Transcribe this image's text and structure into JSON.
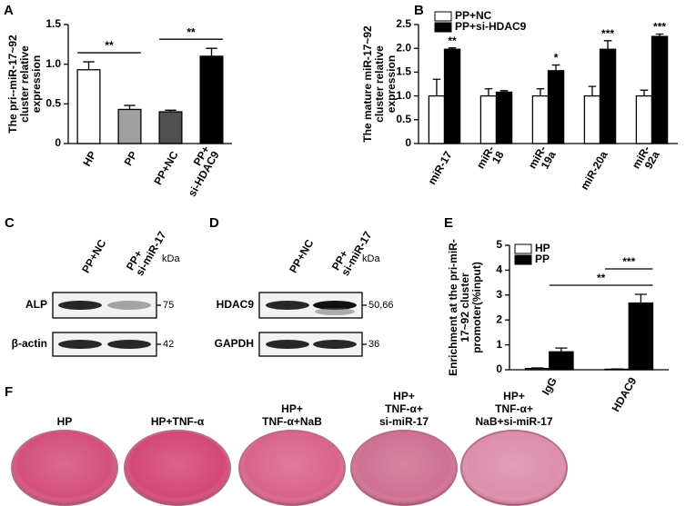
{
  "chart_data": [
    {
      "type": "bar",
      "panel": "A",
      "ylabel": [
        "The pri--miR-17~92",
        "cluster relative",
        "expression"
      ],
      "categories": [
        [
          "HP"
        ],
        [
          "PP"
        ],
        [
          "PP+NC"
        ],
        [
          "PP+",
          "si-HDAC9"
        ]
      ],
      "values": [
        0.93,
        0.43,
        0.4,
        1.1
      ],
      "errors": [
        0.1,
        0.05,
        0.02,
        0.1
      ],
      "colors": [
        "#ffffff",
        "#a0a0a0",
        "#505050",
        "#000000"
      ],
      "ylim": [
        0,
        1.5
      ],
      "yticks": [
        0,
        0.5,
        {
          "value": 1,
          "label": "1.0"
        },
        1.5
      ],
      "brackets": [
        {
          "from": 0,
          "to": 1,
          "label": "**"
        },
        {
          "from": 2,
          "to": 3,
          "label": "**"
        }
      ]
    },
    {
      "type": "grouped_bar",
      "panel": "B",
      "ylabel": [
        "The mature miR-17~92",
        "cluster relative",
        "expression"
      ],
      "categories": [
        [
          "miR-17"
        ],
        [
          "miR-",
          "18"
        ],
        [
          "miR-",
          "19a"
        ],
        [
          "miR-20a"
        ],
        [
          "miR-",
          "92a"
        ]
      ],
      "series": [
        {
          "name": "PP+NC",
          "color": "#ffffff",
          "values": [
            1,
            1,
            1,
            1,
            1
          ],
          "errors": [
            0.35,
            0.15,
            0.15,
            0.2,
            0.12
          ]
        },
        {
          "name": "PP+si-HDAC9",
          "color": "#000000",
          "values": [
            1.98,
            1.08,
            1.53,
            1.98,
            2.25
          ],
          "errors": [
            0.03,
            0.03,
            0.12,
            0.18,
            0.05
          ]
        }
      ],
      "annotations": [
        "**",
        null,
        "*",
        "***",
        "***"
      ],
      "ylim": [
        0,
        2.5
      ],
      "yticks": [
        0,
        0.5,
        {
          "value": 1,
          "label": "1.0"
        },
        1.5,
        {
          "value": 2,
          "label": "2.0"
        },
        2.5
      ],
      "brackets": []
    },
    {
      "type": "grouped_bar",
      "panel": "E",
      "ylabel": [
        "Enrichment at the pri-miR-",
        "17~92 cluster",
        "promoter(%input)"
      ],
      "categories": [
        [
          "IgG"
        ],
        [
          "HDAC9"
        ]
      ],
      "series": [
        {
          "name": "HP",
          "color": "#ffffff",
          "values": [
            0.05,
            0.02
          ],
          "errors": [
            0.02,
            0.01
          ]
        },
        {
          "name": "PP",
          "color": "#000000",
          "values": [
            0.72,
            2.68
          ],
          "errors": [
            0.15,
            0.35
          ]
        }
      ],
      "annotations": [
        null,
        null
      ],
      "ylim": [
        0,
        5
      ],
      "yticks": [
        0,
        1,
        2,
        3,
        4,
        5
      ],
      "brackets": [
        {
          "from": [
            1,
            0
          ],
          "to": [
            1,
            1
          ],
          "label": "**"
        },
        {
          "from": [
            0,
            1
          ],
          "to": [
            1,
            1
          ],
          "label": "***"
        }
      ]
    }
  ],
  "blots": [
    {
      "panel": "C",
      "lanes": [
        [
          "PP+NC"
        ],
        [
          "PP+",
          "si-miR-17"
        ]
      ],
      "unit": "kDa",
      "rows": [
        {
          "label": "ALP",
          "kda": "75"
        },
        {
          "label": "β-actin",
          "kda": "42"
        }
      ]
    },
    {
      "panel": "D",
      "lanes": [
        [
          "PP+NC"
        ],
        [
          "PP+",
          "si-miR-17"
        ]
      ],
      "unit": "kDa",
      "rows": [
        {
          "label": "HDAC9",
          "kda": "50,66"
        },
        {
          "label": "GAPDH",
          "kda": "36"
        }
      ]
    }
  ],
  "wells": {
    "panel": "F",
    "labels": [
      [
        "HP"
      ],
      [
        "HP+TNF-α"
      ],
      [
        "HP+",
        "TNF-α+NaB"
      ],
      [
        "HP+",
        "TNF-α+",
        "si-miR-17"
      ],
      [
        "HP+",
        "TNF-α+",
        "NaB+si-miR-17"
      ]
    ]
  }
}
